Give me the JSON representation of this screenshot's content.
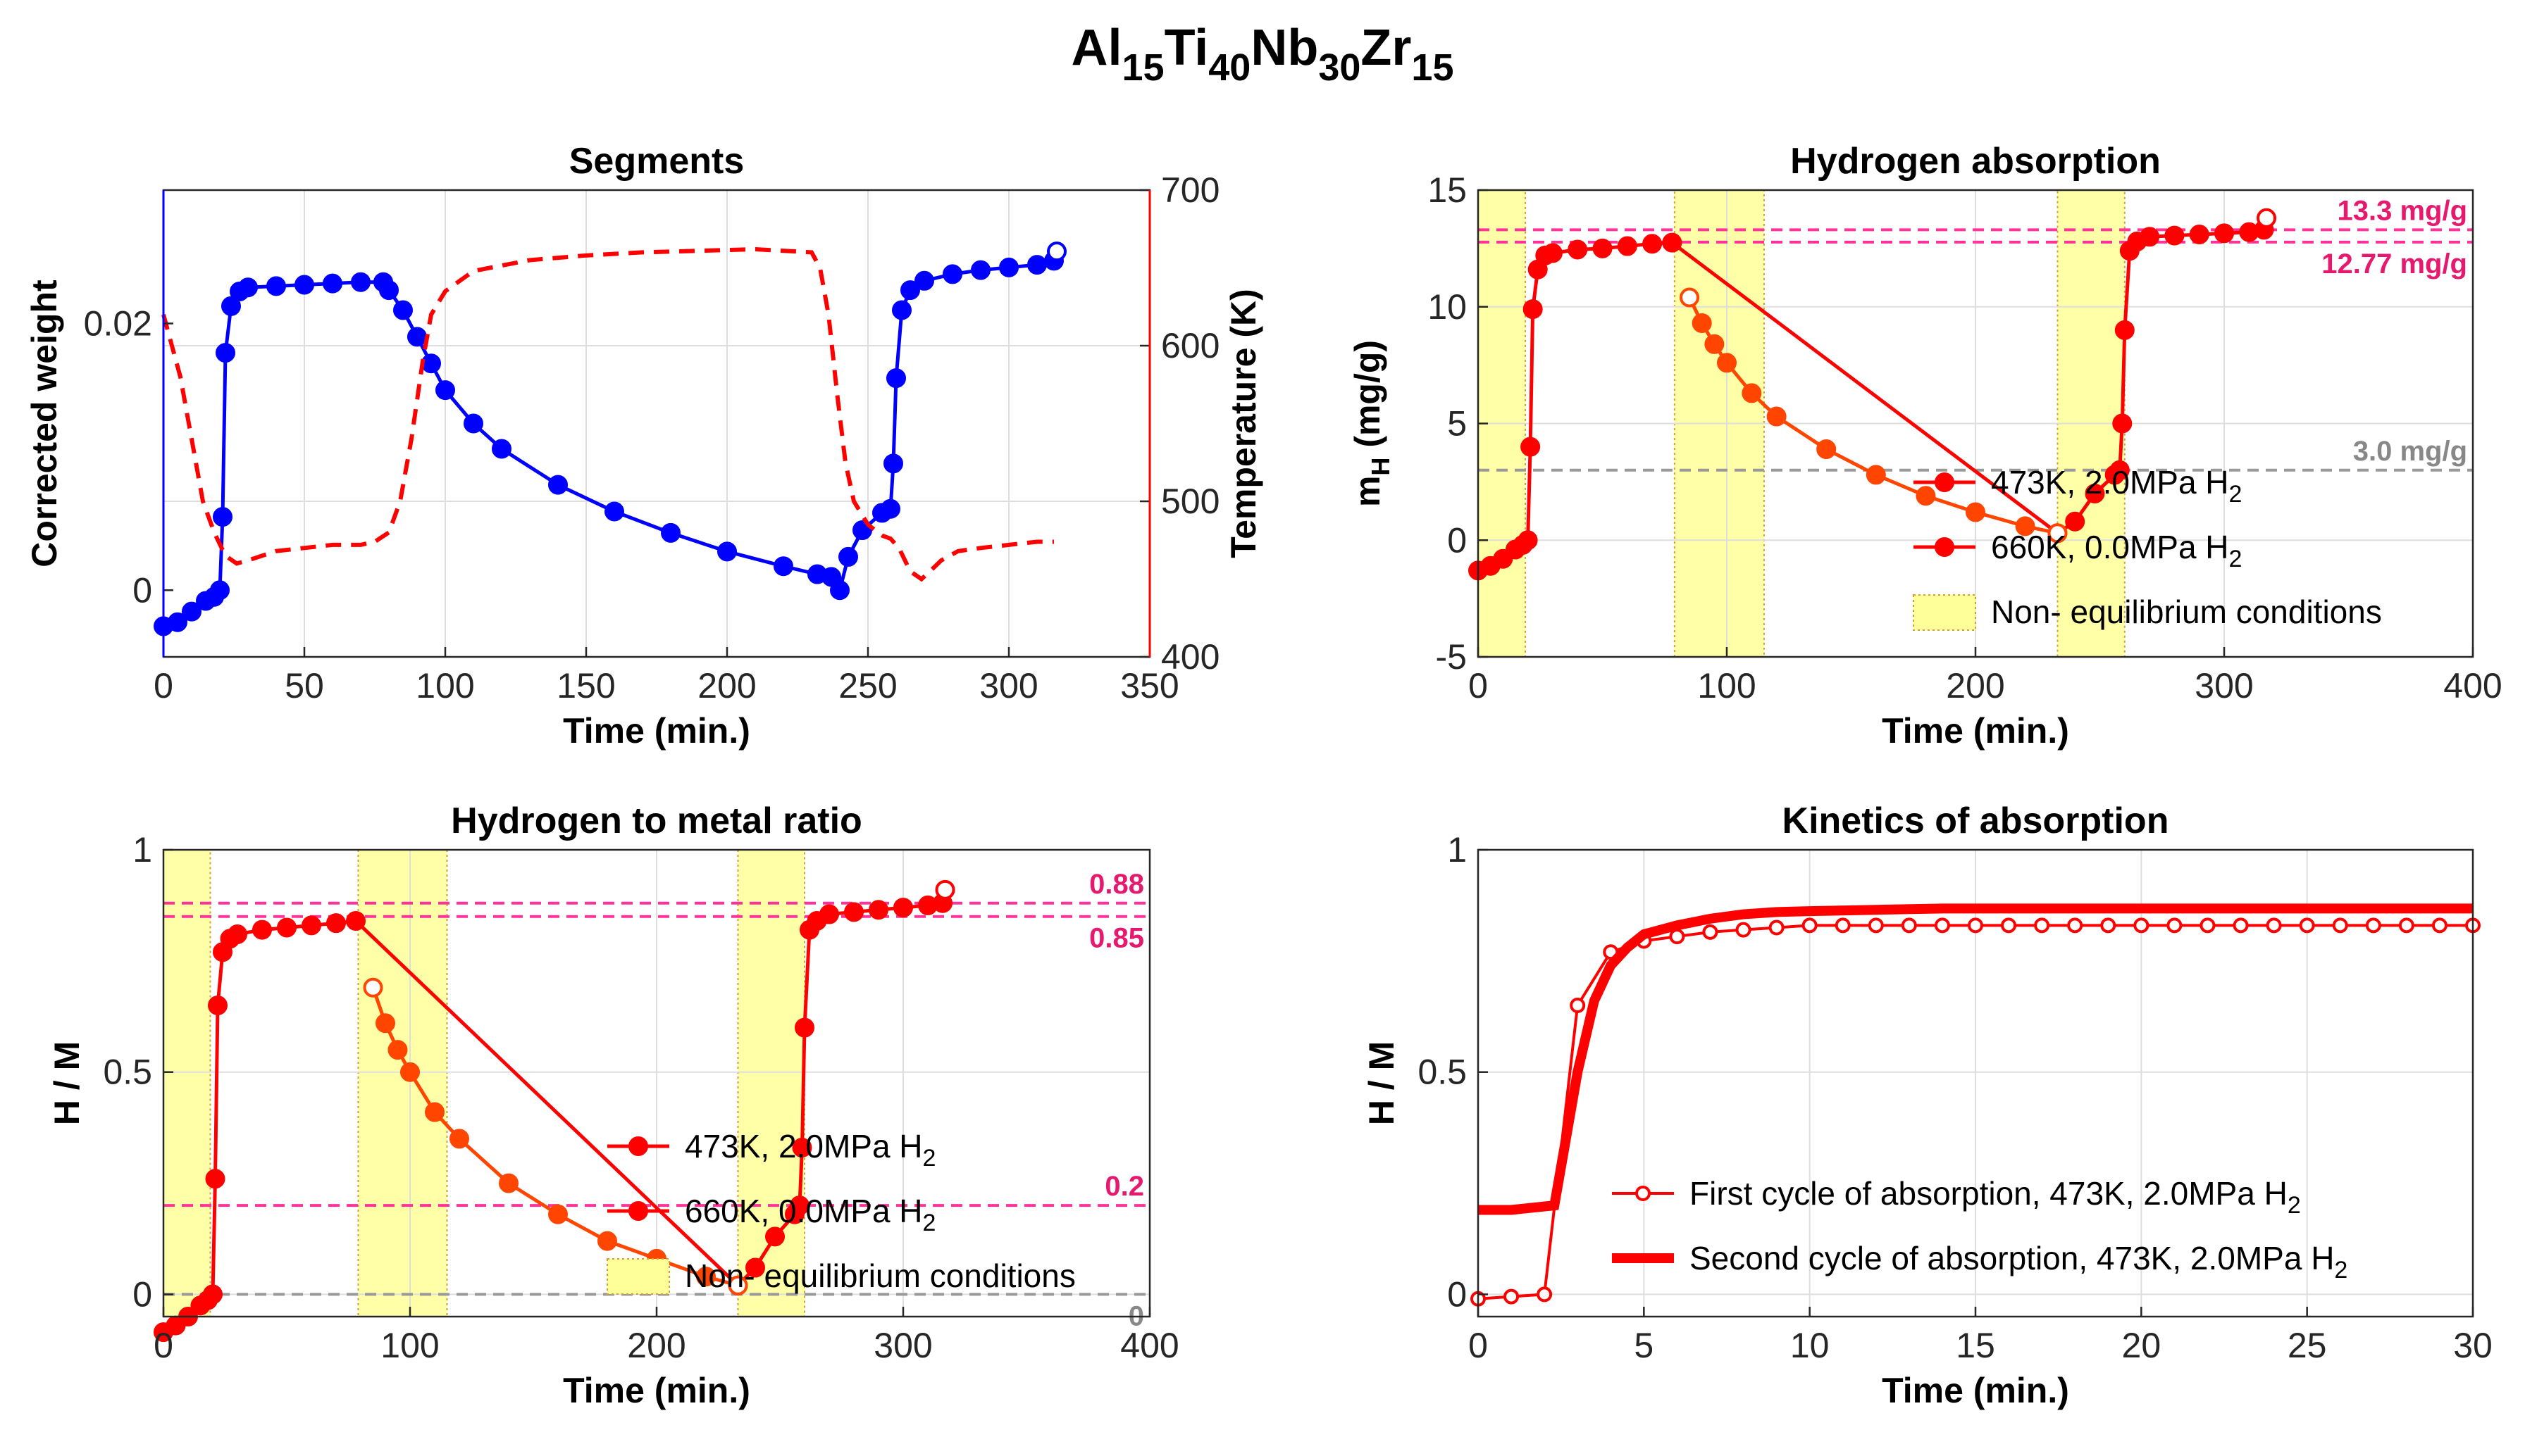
{
  "figure_title": {
    "main_1": "Al",
    "sub_1": "15",
    "main_2": "Ti",
    "sub_2": "40",
    "main_3": "Nb",
    "sub_3": "30",
    "main_4": "Zr",
    "sub_4": "15"
  },
  "colors": {
    "blue": "#0000ff",
    "red": "#ff0000",
    "orange": "#ff4500",
    "pink": "#ff3399",
    "gray": "#999999",
    "yellow_fill": "#ffff99",
    "grid": "#dedede",
    "annot_pink": "#e6196e",
    "annot_gray": "#888888"
  },
  "chart_data": [
    {
      "id": "segments",
      "type": "line",
      "title": "Segments",
      "xlabel": "Time (min.)",
      "ylabel_left": "Corrected weight",
      "ylabel_right": "Temperature (K)",
      "xlim": [
        0,
        350
      ],
      "ylim_left": [
        -0.005,
        0.03
      ],
      "ylim_right": [
        400,
        700
      ],
      "xticks": [
        "0",
        "50",
        "100",
        "150",
        "200",
        "250",
        "300",
        "350"
      ],
      "yticks_left": [
        "0",
        "0.02"
      ],
      "yticks_right": [
        "400",
        "500",
        "600",
        "700"
      ],
      "series": [
        {
          "name": "Corrected weight",
          "axis": "left",
          "style": "blue-markers",
          "x": [
            0,
            5,
            10,
            15,
            18,
            20,
            21,
            22,
            24,
            27,
            30,
            40,
            50,
            60,
            70,
            78,
            80,
            85,
            90,
            95,
            100,
            110,
            120,
            140,
            160,
            180,
            200,
            220,
            232,
            237,
            240,
            243,
            248,
            255,
            258,
            259,
            260,
            262,
            265,
            270,
            280,
            290,
            300,
            310,
            316,
            317
          ],
          "y": [
            -0.0027,
            -0.0024,
            -0.0016,
            -0.0008,
            -0.0005,
            0.0,
            0.0055,
            0.0178,
            0.0213,
            0.0224,
            0.0227,
            0.0228,
            0.0229,
            0.023,
            0.0231,
            0.0231,
            0.0225,
            0.021,
            0.019,
            0.017,
            0.015,
            0.0125,
            0.0106,
            0.0079,
            0.0059,
            0.0043,
            0.0029,
            0.0018,
            0.0012,
            0.001,
            0.0,
            0.0025,
            0.0045,
            0.0058,
            0.0061,
            0.0095,
            0.0159,
            0.021,
            0.0225,
            0.0232,
            0.0237,
            0.024,
            0.0242,
            0.0244,
            0.0247,
            0.0254
          ]
        },
        {
          "name": "Temperature",
          "axis": "right",
          "style": "red-dashed",
          "x": [
            0,
            3,
            6,
            10,
            14,
            18,
            22,
            26,
            30,
            40,
            50,
            60,
            70,
            75,
            80,
            84,
            88,
            92,
            95,
            100,
            110,
            130,
            150,
            170,
            190,
            210,
            230,
            233,
            236,
            239,
            242,
            245,
            250,
            255,
            258,
            261,
            265,
            269,
            272,
            276,
            282,
            290,
            300,
            310,
            316
          ],
          "y": [
            620,
            600,
            580,
            540,
            500,
            480,
            465,
            460,
            462,
            468,
            470,
            472,
            472,
            474,
            480,
            500,
            540,
            590,
            620,
            635,
            648,
            655,
            658,
            660,
            661,
            662,
            660,
            650,
            620,
            570,
            525,
            500,
            485,
            478,
            476,
            470,
            455,
            450,
            455,
            462,
            468,
            470,
            472,
            474,
            474
          ]
        }
      ]
    },
    {
      "id": "hydrogen-absorption",
      "type": "scatter",
      "title": "Hydrogen absorption",
      "xlabel": "Time (min.)",
      "ylabel_main": "m",
      "ylabel_sub": "H",
      "ylabel_tail": " (mg/g)",
      "xlim": [
        0,
        400
      ],
      "ylim": [
        -5,
        15
      ],
      "xticks": [
        "0",
        "100",
        "200",
        "300",
        "400"
      ],
      "yticks": [
        "-5",
        "0",
        "5",
        "10",
        "15"
      ],
      "shaded_regions": [
        [
          0,
          19
        ],
        [
          79,
          115
        ],
        [
          233,
          260
        ]
      ],
      "reference_lines": [
        {
          "value": 13.3,
          "label": "13.3 mg/g",
          "color": "pink"
        },
        {
          "value": 12.77,
          "label": "12.77 mg/g",
          "color": "pink"
        },
        {
          "value": 3.0,
          "label": "3.0 mg/g",
          "color": "gray"
        }
      ],
      "series": [
        {
          "name": "473K, 2.0MPa H2",
          "color": "red",
          "x": [
            0,
            5,
            10,
            15,
            18,
            20,
            21,
            22,
            24,
            27,
            30,
            40,
            50,
            60,
            70,
            78,
            233,
            240,
            248,
            256,
            258,
            259,
            260,
            262,
            265,
            270,
            280,
            290,
            300,
            310,
            316,
            317
          ],
          "y": [
            -1.3,
            -1.1,
            -0.8,
            -0.4,
            -0.2,
            0.0,
            4.0,
            9.9,
            11.6,
            12.2,
            12.3,
            12.45,
            12.5,
            12.6,
            12.7,
            12.75,
            0.3,
            0.8,
            2.0,
            2.8,
            3.0,
            5.0,
            9.0,
            12.4,
            12.8,
            13.0,
            13.05,
            13.1,
            13.15,
            13.2,
            13.3,
            13.8
          ]
        },
        {
          "name": "660K, 0.0MPa H2",
          "color": "orange",
          "x": [
            85,
            90,
            95,
            100,
            110,
            120,
            140,
            160,
            180,
            200,
            220,
            233
          ],
          "y": [
            10.4,
            9.3,
            8.4,
            7.6,
            6.3,
            5.3,
            3.9,
            2.8,
            1.9,
            1.2,
            0.6,
            0.3
          ]
        }
      ],
      "legend": [
        {
          "label_main": "473K, 2.0MPa H",
          "label_sub": "2"
        },
        {
          "label_main": "660K, 0.0MPa H",
          "label_sub": "2"
        },
        {
          "label_main": "Non- equilibrium conditions",
          "label_sub": ""
        }
      ]
    },
    {
      "id": "hydrogen-to-metal-ratio",
      "type": "scatter",
      "title": "Hydrogen to metal ratio",
      "xlabel": "Time (min.)",
      "ylabel": "H / M",
      "xlim": [
        0,
        400
      ],
      "ylim": [
        -0.05,
        1
      ],
      "xticks": [
        "0",
        "100",
        "200",
        "300",
        "400"
      ],
      "yticks": [
        "0",
        "0.5",
        "1"
      ],
      "shaded_regions": [
        [
          0,
          19
        ],
        [
          79,
          115
        ],
        [
          233,
          260
        ]
      ],
      "reference_lines": [
        {
          "value": 0.88,
          "label": "0.88",
          "color": "pink"
        },
        {
          "value": 0.85,
          "label": "0.85",
          "color": "pink"
        },
        {
          "value": 0.2,
          "label": "0.2",
          "color": "pink"
        },
        {
          "value": 0.0,
          "label": "0",
          "color": "gray"
        }
      ],
      "series": [
        {
          "name": "473K, 2.0MPa H2",
          "color": "red",
          "x": [
            0,
            5,
            10,
            15,
            18,
            20,
            21,
            22,
            24,
            27,
            30,
            40,
            50,
            60,
            70,
            78,
            233,
            240,
            248,
            256,
            258,
            259,
            260,
            262,
            265,
            270,
            280,
            290,
            300,
            310,
            316,
            317
          ],
          "y": [
            -0.085,
            -0.07,
            -0.05,
            -0.025,
            -0.013,
            0.0,
            0.26,
            0.65,
            0.77,
            0.8,
            0.81,
            0.82,
            0.825,
            0.83,
            0.835,
            0.84,
            0.02,
            0.06,
            0.13,
            0.18,
            0.2,
            0.33,
            0.6,
            0.82,
            0.84,
            0.855,
            0.86,
            0.865,
            0.87,
            0.875,
            0.88,
            0.91
          ]
        },
        {
          "name": "660K, 0.0MPa H2",
          "color": "orange",
          "x": [
            85,
            90,
            95,
            100,
            110,
            120,
            140,
            160,
            180,
            200,
            220,
            233
          ],
          "y": [
            0.69,
            0.61,
            0.55,
            0.5,
            0.41,
            0.35,
            0.25,
            0.18,
            0.12,
            0.08,
            0.04,
            0.02
          ]
        }
      ],
      "legend": [
        {
          "label_main": "473K, 2.0MPa H",
          "label_sub": "2"
        },
        {
          "label_main": "660K, 0.0MPa H",
          "label_sub": "2"
        },
        {
          "label_main": "Non- equilibrium conditions",
          "label_sub": ""
        }
      ]
    },
    {
      "id": "kinetics-of-absorption",
      "type": "line",
      "title": "Kinetics of absorption",
      "xlabel": "Time (min.)",
      "ylabel": "H / M",
      "xlim": [
        0,
        30
      ],
      "ylim": [
        -0.05,
        1
      ],
      "xticks": [
        "0",
        "5",
        "10",
        "15",
        "20",
        "25",
        "30"
      ],
      "yticks": [
        "0",
        "0.5",
        "1"
      ],
      "series": [
        {
          "name": "First cycle of absorption, 473K, 2.0MPa H2",
          "style": "thin-markers",
          "x": [
            0,
            1,
            2,
            3,
            4,
            5,
            6,
            7,
            8,
            9,
            10,
            11,
            12,
            13,
            14,
            15,
            16,
            17,
            18,
            19,
            20,
            21,
            22,
            23,
            24,
            25,
            26,
            27,
            28,
            29,
            30
          ],
          "y": [
            -0.01,
            -0.005,
            0.0,
            0.65,
            0.77,
            0.795,
            0.805,
            0.815,
            0.82,
            0.825,
            0.83,
            0.83,
            0.83,
            0.83,
            0.83,
            0.83,
            0.83,
            0.83,
            0.83,
            0.83,
            0.83,
            0.83,
            0.83,
            0.83,
            0.83,
            0.83,
            0.83,
            0.83,
            0.83,
            0.83,
            0.83
          ]
        },
        {
          "name": "Second cycle of absorption, 473K, 2.0MPa H2",
          "style": "thick-line",
          "x": [
            0,
            1,
            2.3,
            3,
            3.5,
            4,
            4.5,
            5,
            6,
            7,
            8,
            9,
            10,
            12,
            14,
            16,
            20,
            25,
            30
          ],
          "y": [
            0.19,
            0.19,
            0.2,
            0.5,
            0.66,
            0.74,
            0.78,
            0.81,
            0.83,
            0.845,
            0.855,
            0.86,
            0.862,
            0.865,
            0.868,
            0.868,
            0.868,
            0.868,
            0.868
          ]
        }
      ],
      "legend": [
        {
          "label_main": "First cycle of absorption, 473K, 2.0MPa H",
          "label_sub": "2"
        },
        {
          "label_main": "Second cycle of absorption, 473K, 2.0MPa H",
          "label_sub": "2"
        }
      ]
    }
  ]
}
